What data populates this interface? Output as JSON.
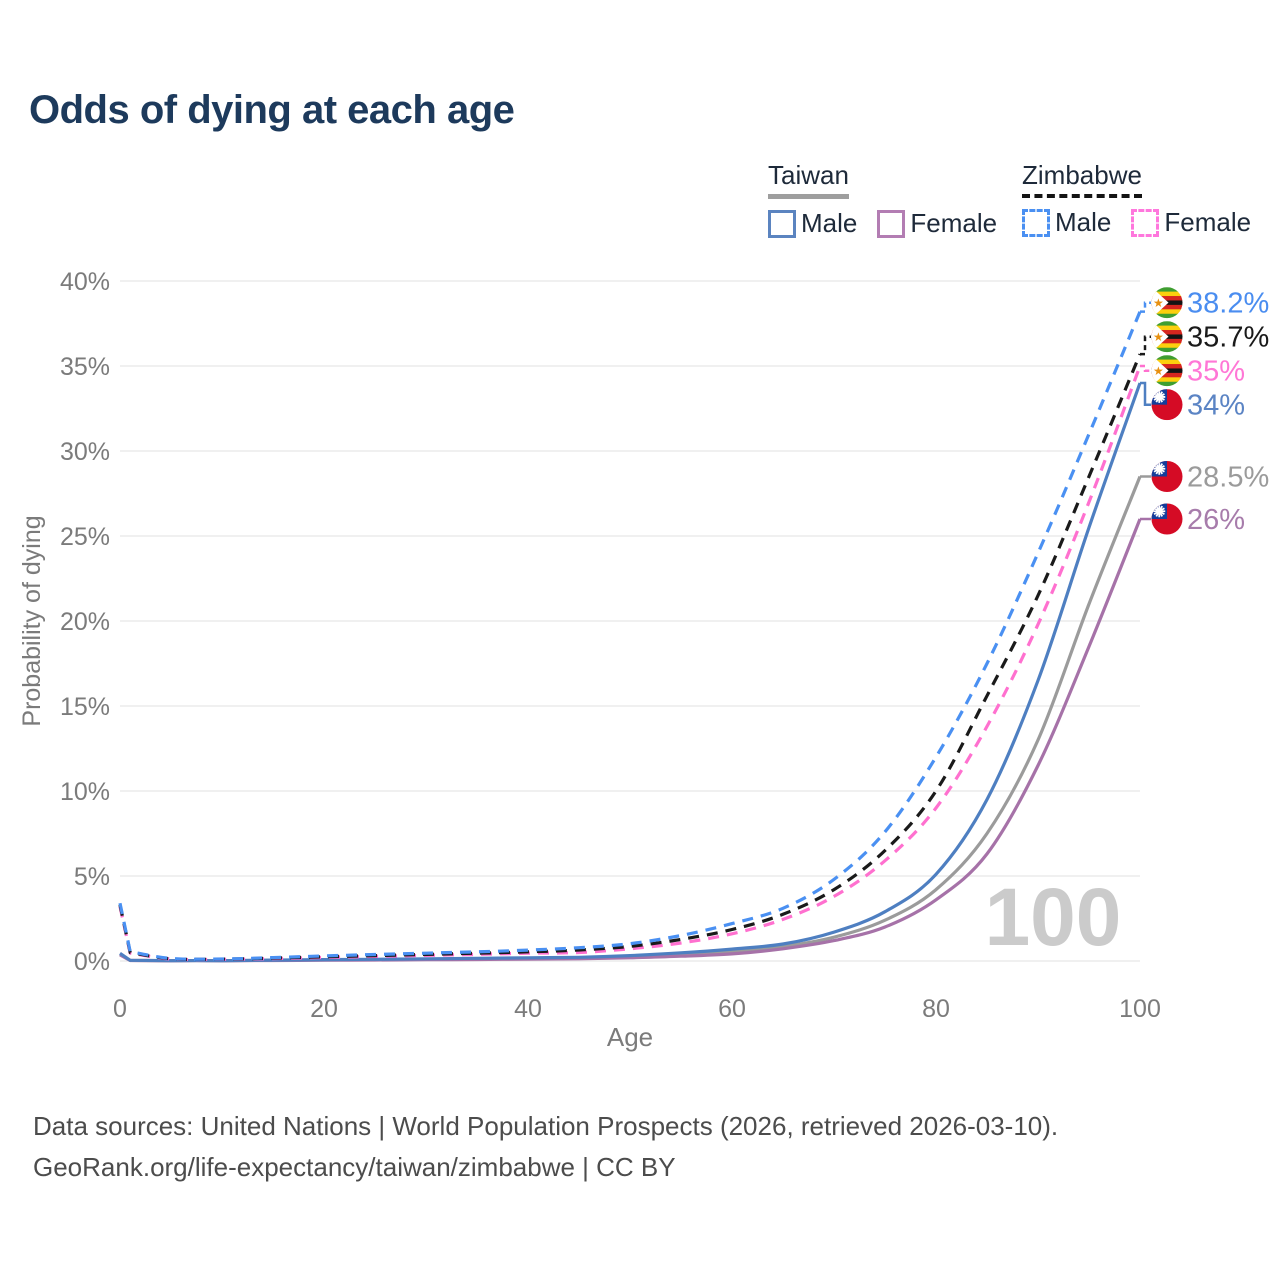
{
  "title": "Odds of dying at each age",
  "legend": {
    "groups": [
      {
        "name": "Taiwan",
        "line_style": "solid",
        "line_color": "#9e9e9e",
        "items": [
          {
            "label": "Male",
            "color": "#5b84c0"
          },
          {
            "label": "Female",
            "color": "#b37db3"
          }
        ]
      },
      {
        "name": "Zimbabwe",
        "line_style": "dashed",
        "line_color": "#141414",
        "items": [
          {
            "label": "Male",
            "color": "#4a90f2"
          },
          {
            "label": "Female",
            "color": "#ff77dd"
          }
        ]
      }
    ]
  },
  "chart_data": {
    "type": "line",
    "title": "Odds of dying at each age",
    "xlabel": "Age",
    "ylabel": "Probability of dying",
    "xlim": [
      0,
      100
    ],
    "ylim_percent": [
      0,
      40
    ],
    "x_ticks": [
      0,
      20,
      40,
      60,
      80,
      100
    ],
    "y_ticks_percent": [
      0,
      5,
      10,
      15,
      20,
      25,
      30,
      35,
      40
    ],
    "grid": "horizontal",
    "age_watermark": "100",
    "ages": [
      0,
      1,
      5,
      10,
      15,
      20,
      25,
      30,
      35,
      40,
      45,
      50,
      55,
      60,
      65,
      70,
      75,
      80,
      85,
      90,
      95,
      100
    ],
    "series": [
      {
        "name": "Zimbabwe Male",
        "country": "Zimbabwe",
        "sex": "Male",
        "style": "dashed",
        "color": "#4a90f2",
        "label_color": "#4a8df0",
        "flag": "zimbabwe",
        "end_label": "38.2%",
        "end_value_percent": 38.2,
        "values_percent": [
          3.4,
          0.55,
          0.15,
          0.12,
          0.2,
          0.3,
          0.38,
          0.46,
          0.54,
          0.64,
          0.78,
          1.02,
          1.5,
          2.2,
          3.1,
          4.8,
          7.6,
          12,
          17.5,
          24,
          31,
          38.2
        ]
      },
      {
        "name": "Zimbabwe Total",
        "country": "Zimbabwe",
        "sex": "Both",
        "style": "dashed",
        "color": "#1a1a1a",
        "label_color": "#1a1a1a",
        "flag": "zimbabwe",
        "end_label": "35.7%",
        "end_value_percent": 35.7,
        "values_percent": [
          3.3,
          0.5,
          0.13,
          0.11,
          0.17,
          0.25,
          0.32,
          0.39,
          0.46,
          0.54,
          0.65,
          0.86,
          1.27,
          1.85,
          2.75,
          4.2,
          6.5,
          10,
          15.6,
          21.5,
          28.5,
          35.7
        ]
      },
      {
        "name": "Zimbabwe Female",
        "country": "Zimbabwe",
        "sex": "Female",
        "style": "dashed",
        "color": "#ff70cf",
        "label_color": "#ff77d6",
        "flag": "zimbabwe",
        "end_label": "35%",
        "end_value_percent": 35,
        "values_percent": [
          3.2,
          0.46,
          0.12,
          0.1,
          0.14,
          0.21,
          0.27,
          0.33,
          0.39,
          0.46,
          0.5,
          0.72,
          1.06,
          1.6,
          2.45,
          3.8,
          5.9,
          9,
          13.8,
          19.8,
          27,
          35
        ]
      },
      {
        "name": "Taiwan Male",
        "country": "Taiwan",
        "sex": "Male",
        "style": "solid",
        "color": "#4e7fc1",
        "label_color": "#5b84c4",
        "flag": "taiwan",
        "end_label": "34%",
        "end_value_percent": 34,
        "values_percent": [
          0.45,
          0.04,
          0.02,
          0.02,
          0.05,
          0.08,
          0.1,
          0.13,
          0.16,
          0.19,
          0.22,
          0.32,
          0.48,
          0.7,
          1.0,
          1.7,
          2.9,
          5.1,
          9.5,
          16.5,
          25.5,
          34
        ]
      },
      {
        "name": "Taiwan Total",
        "country": "Taiwan",
        "sex": "Both",
        "style": "solid",
        "color": "#9b9b9b",
        "label_color": "#9b9b9b",
        "flag": "taiwan",
        "end_label": "28.5%",
        "end_value_percent": 28.5,
        "values_percent": [
          0.4,
          0.035,
          0.017,
          0.015,
          0.04,
          0.06,
          0.08,
          0.1,
          0.12,
          0.15,
          0.17,
          0.25,
          0.38,
          0.56,
          0.85,
          1.4,
          2.4,
          4.2,
          7.5,
          13,
          21,
          28.5
        ]
      },
      {
        "name": "Taiwan Female",
        "country": "Taiwan",
        "sex": "Female",
        "style": "solid",
        "color": "#a672a8",
        "label_color": "#a77cab",
        "flag": "taiwan",
        "end_label": "26%",
        "end_value_percent": 26,
        "values_percent": [
          0.36,
          0.03,
          0.014,
          0.012,
          0.03,
          0.045,
          0.06,
          0.075,
          0.09,
          0.11,
          0.13,
          0.19,
          0.28,
          0.42,
          0.72,
          1.2,
          2.0,
          3.6,
          6.3,
          11.5,
          18.5,
          26
        ]
      }
    ]
  },
  "footer": {
    "line1": "Data sources: United Nations | World Population Prospects (2026, retrieved 2026-03-10).",
    "line2": "GeoRank.org/life-expectancy/taiwan/zimbabwe | CC BY"
  }
}
